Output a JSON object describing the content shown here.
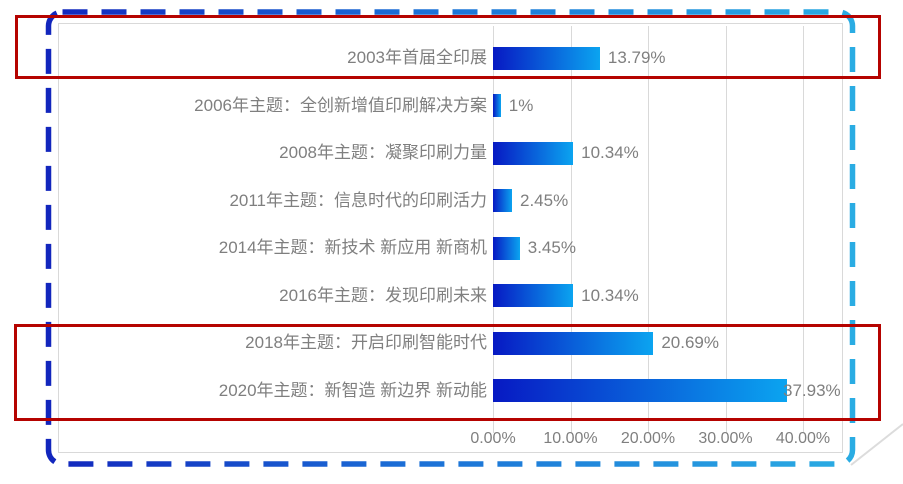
{
  "chart_data": {
    "type": "bar",
    "orientation": "horizontal",
    "title": "",
    "categories": [
      "2003年首届全印展",
      "2006年主题：全创新增值印刷解决方案",
      "2008年主题：凝聚印刷力量",
      "2011年主题：信息时代的印刷活力",
      "2014年主题：新技术 新应用 新商机",
      "2016年主题：发现印刷未来",
      "2018年主题：开启印刷智能时代",
      "2020年主题：新智造 新边界 新动能"
    ],
    "values": [
      13.79,
      1,
      10.34,
      2.45,
      3.45,
      10.34,
      20.69,
      37.93
    ],
    "value_labels": [
      "13.79%",
      "1%",
      "10.34%",
      "2.45%",
      "3.45%",
      "10.34%",
      "20.69%",
      "37.93%"
    ],
    "x_axis_ticks": [
      "0.00%",
      "10.00%",
      "20.00%",
      "30.00%",
      "40.00%"
    ],
    "x_axis_tick_values": [
      0,
      10,
      20,
      30,
      40
    ],
    "xlim": [
      0,
      40
    ],
    "xlabel": "",
    "ylabel": "",
    "grid": "vertical-lines-on",
    "legend": "none",
    "bar_gradient_start": "#0719c3",
    "bar_gradient_end": "#0ba4f0",
    "label_color": "#7f7f7f",
    "gridline_color": "#d9d9d9"
  },
  "annotations": {
    "highlight_box_color": "#b50300",
    "highlight_boxes": [
      {
        "rows_highlighted": "2003年首届全印展"
      },
      {
        "rows_highlighted": "2018年主题：开启印刷智能时代 / 2020年主题：新智造 新边界 新动能"
      }
    ],
    "dashed_border": {
      "style": "dashed rounded rectangle",
      "gradient_start": "#1226bd",
      "gradient_end": "#2aace3"
    }
  }
}
